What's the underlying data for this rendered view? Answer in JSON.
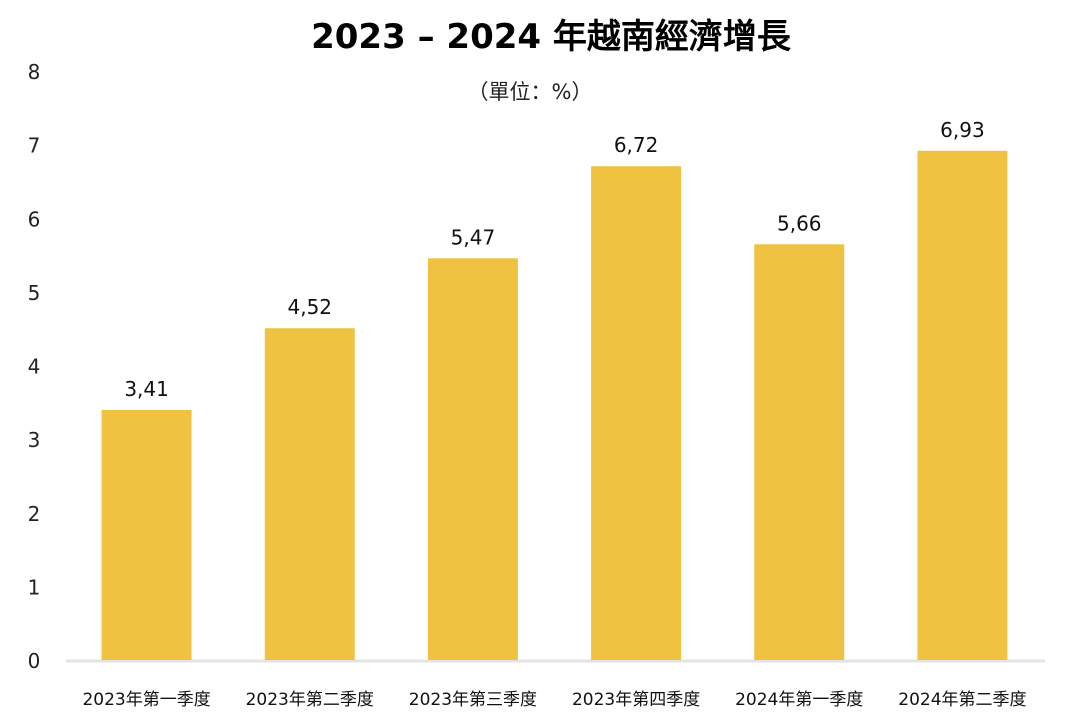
{
  "chart_data": {
    "type": "bar",
    "title": "2023 – 2024 年越南經濟增長",
    "subtitle": "（單位：%）",
    "xlabel": "",
    "ylabel": "",
    "categories": [
      "2023年第一季度",
      "2023年第二季度",
      "2023年第三季度",
      "2023年第四季度",
      "2024年第一季度",
      "2024年第二季度"
    ],
    "values": [
      3.41,
      4.52,
      5.47,
      6.72,
      5.66,
      6.93
    ],
    "data_labels": [
      "3,41",
      "4,52",
      "5,47",
      "6,72",
      "5,66",
      "6,93"
    ],
    "ylim": [
      0,
      8
    ],
    "yticks": [
      "0",
      "1",
      "2",
      "3",
      "4",
      "5",
      "6",
      "7",
      "8"
    ],
    "grid": false,
    "legend": "none",
    "colors": {
      "bar": "#F0C242",
      "axis": "#E3E3E3"
    }
  }
}
